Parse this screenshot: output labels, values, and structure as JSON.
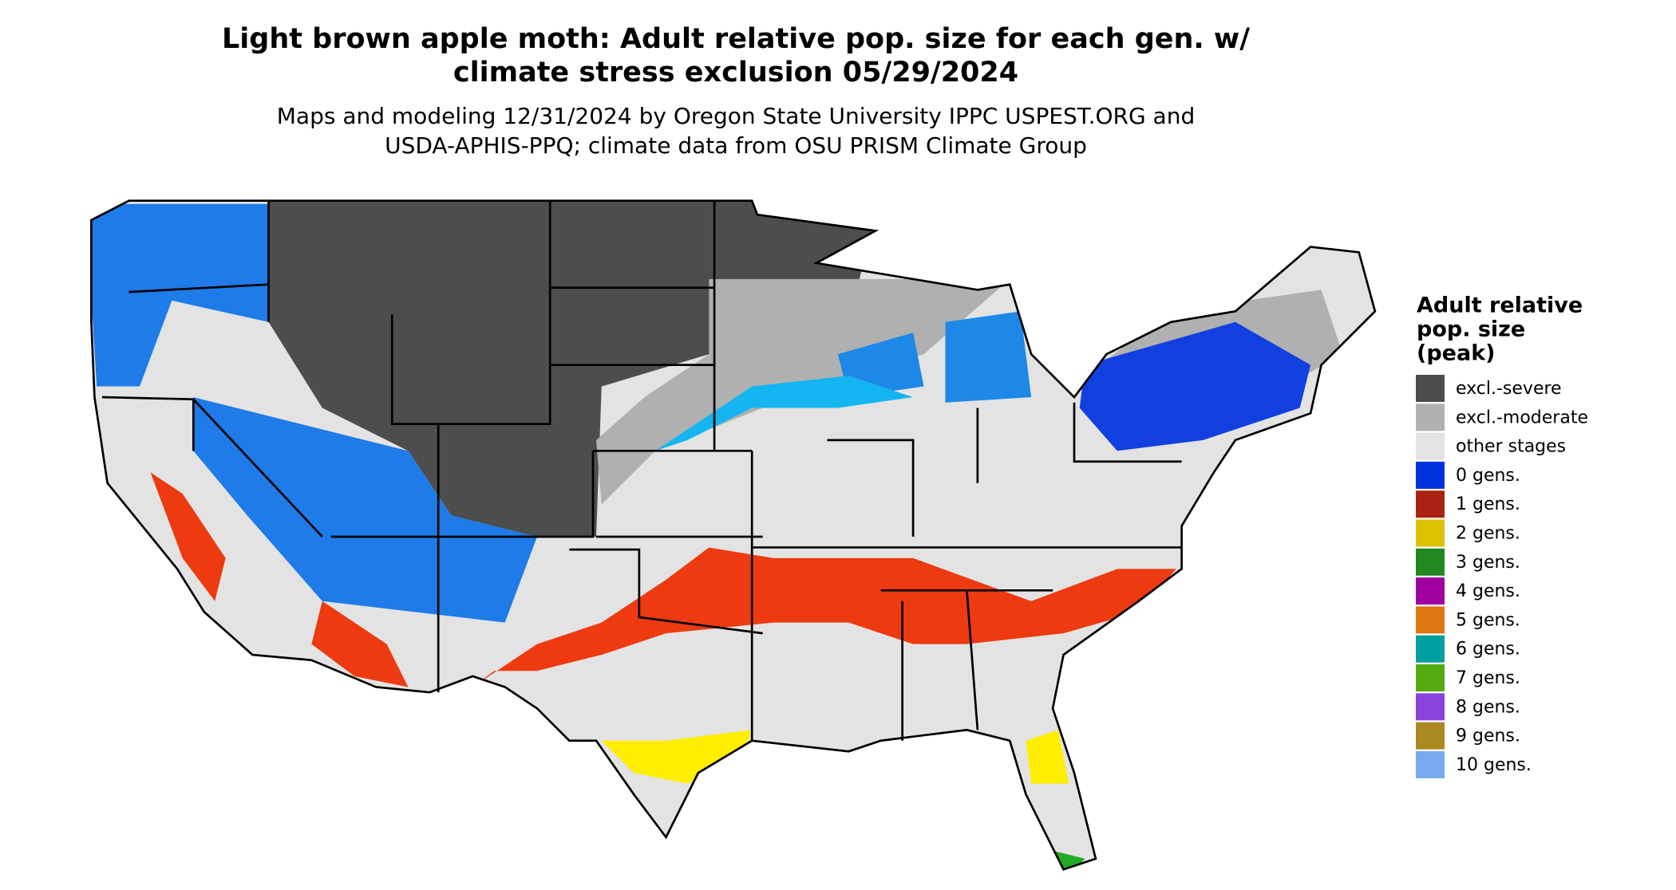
{
  "title": [
    "Light brown apple moth: Adult relative pop. size for each gen. w/",
    "climate stress exclusion 05/29/2024"
  ],
  "subtitle": [
    "Maps and modeling 12/31/2024 by Oregon State University IPPC USPEST.ORG and",
    "USDA-APHIS-PPQ; climate data from OSU PRISM Climate Group"
  ],
  "legend": {
    "title": [
      "Adult relative",
      "pop. size",
      "(peak)"
    ],
    "items": [
      {
        "label": "excl.-severe",
        "color": "#4d4d4d"
      },
      {
        "label": "excl.-moderate",
        "color": "#b0b0b0"
      },
      {
        "label": "other stages",
        "color": "#e3e3e3"
      },
      {
        "label": "0 gens.",
        "color": "#0033dd"
      },
      {
        "label": "1 gens.",
        "color": "#aa2211"
      },
      {
        "label": "2 gens.",
        "color": "#ddc000"
      },
      {
        "label": "3 gens.",
        "color": "#228822"
      },
      {
        "label": "4 gens.",
        "color": "#a000a0"
      },
      {
        "label": "5 gens.",
        "color": "#dd7711"
      },
      {
        "label": "6 gens.",
        "color": "#00a0a0"
      },
      {
        "label": "7 gens.",
        "color": "#55aa11"
      },
      {
        "label": "8 gens.",
        "color": "#8844dd"
      },
      {
        "label": "9 gens.",
        "color": "#aa8822"
      },
      {
        "label": "10 gens.",
        "color": "#77aaee"
      }
    ]
  }
}
